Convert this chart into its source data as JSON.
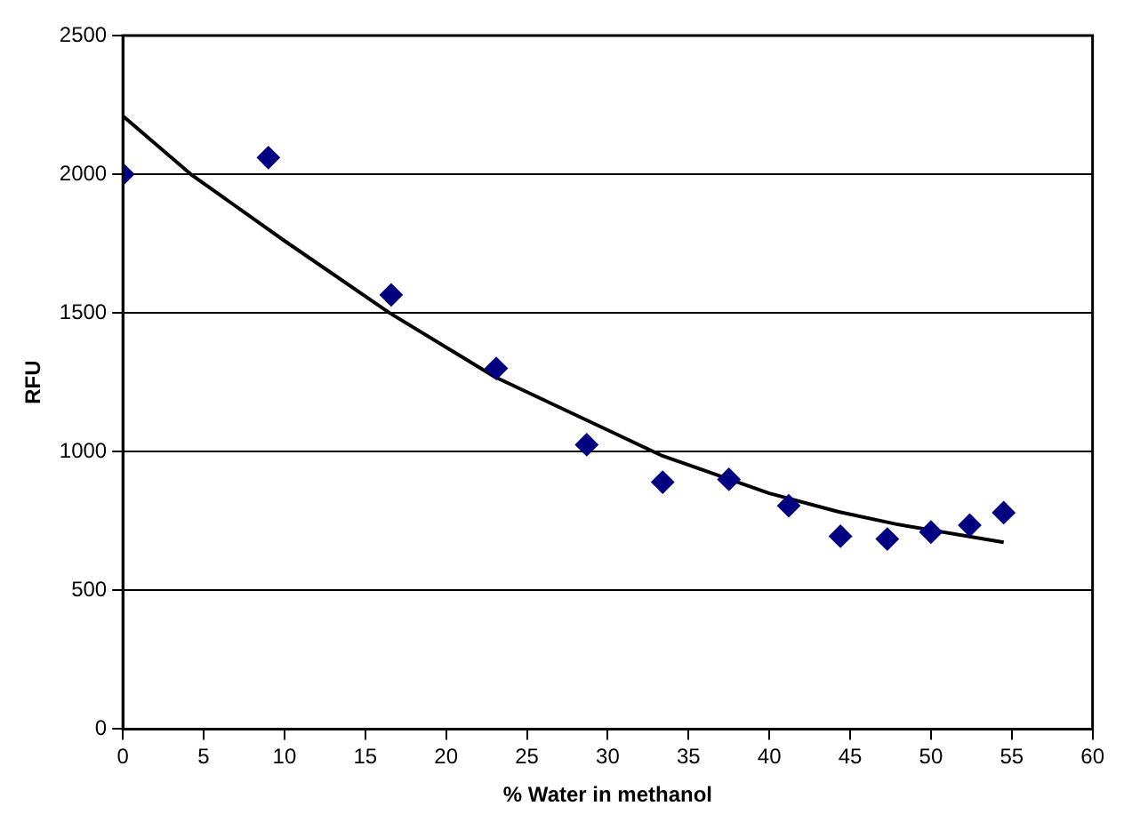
{
  "chart_data": {
    "type": "scatter",
    "xlabel": "% Water in methanol",
    "ylabel": "RFU",
    "xlim": [
      0,
      60
    ],
    "xticks": [
      0,
      5,
      10,
      15,
      20,
      25,
      30,
      35,
      40,
      45,
      50,
      55,
      60
    ],
    "ylim": [
      0,
      2500
    ],
    "yticks": [
      0,
      500,
      1000,
      1500,
      2000,
      2500
    ],
    "grid": "y",
    "legend": false,
    "marker": "diamond",
    "series": [
      {
        "color": "#000080",
        "x": [
          0,
          9.0,
          16.6,
          23.1,
          28.7,
          33.4,
          37.5,
          41.2,
          44.4,
          47.3,
          50.0,
          52.4,
          54.5
        ],
        "values": [
          2000,
          2060,
          1565,
          1300,
          1025,
          890,
          900,
          805,
          695,
          685,
          710,
          735,
          780
        ]
      },
      {
        "type": "line",
        "color": "#000000",
        "marker": "none",
        "line_style": "solid",
        "x": [
          0,
          4.2,
          10,
          16.5,
          23,
          30.5,
          33.3,
          40,
          44.3,
          48,
          54.5
        ],
        "values": [
          2210,
          2000,
          1760,
          1500,
          1270,
          1064,
          987,
          850,
          783,
          737,
          673
        ]
      }
    ]
  }
}
